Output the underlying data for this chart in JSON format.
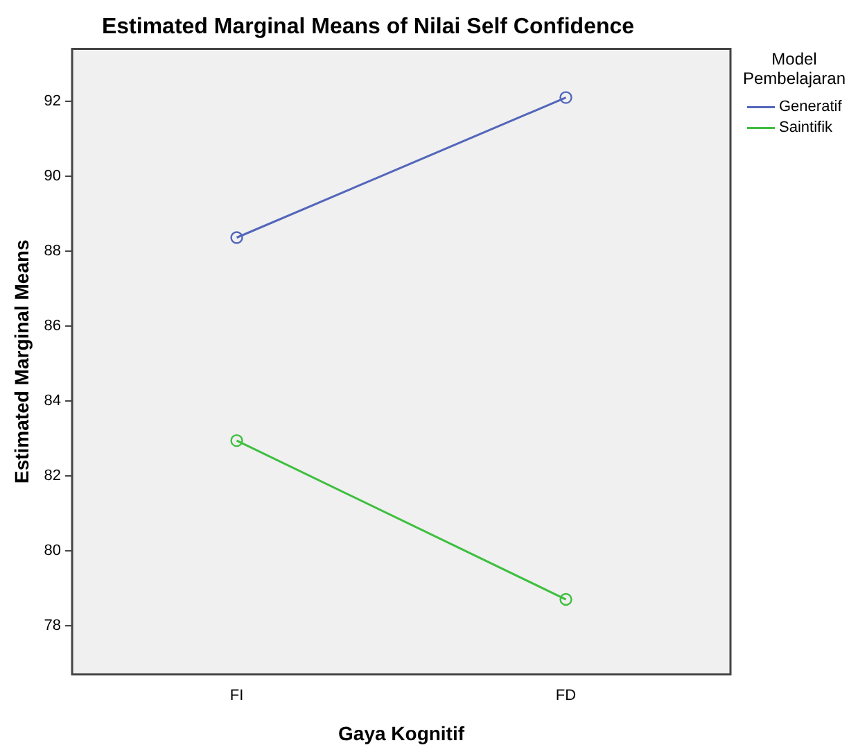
{
  "chart_data": {
    "type": "line",
    "title": "Estimated Marginal Means of Nilai Self Confidence",
    "xlabel": "Gaya Kognitif",
    "ylabel": "Estimated Marginal Means",
    "legend_title": "Model Pembelajaran",
    "categories": [
      "FI",
      "FD"
    ],
    "series": [
      {
        "name": "Generatif",
        "color": "#5366bb",
        "values": [
          88.36,
          92.1
        ]
      },
      {
        "name": "Saintifik",
        "color": "#3fbf3f",
        "values": [
          82.94,
          78.7
        ]
      }
    ],
    "ylim": [
      76.7,
      93.4
    ],
    "yticks": [
      78,
      80,
      82,
      84,
      86,
      88,
      90,
      92
    ],
    "grid": false,
    "legend": "top right",
    "marker": "circle",
    "line_style": "solid"
  }
}
